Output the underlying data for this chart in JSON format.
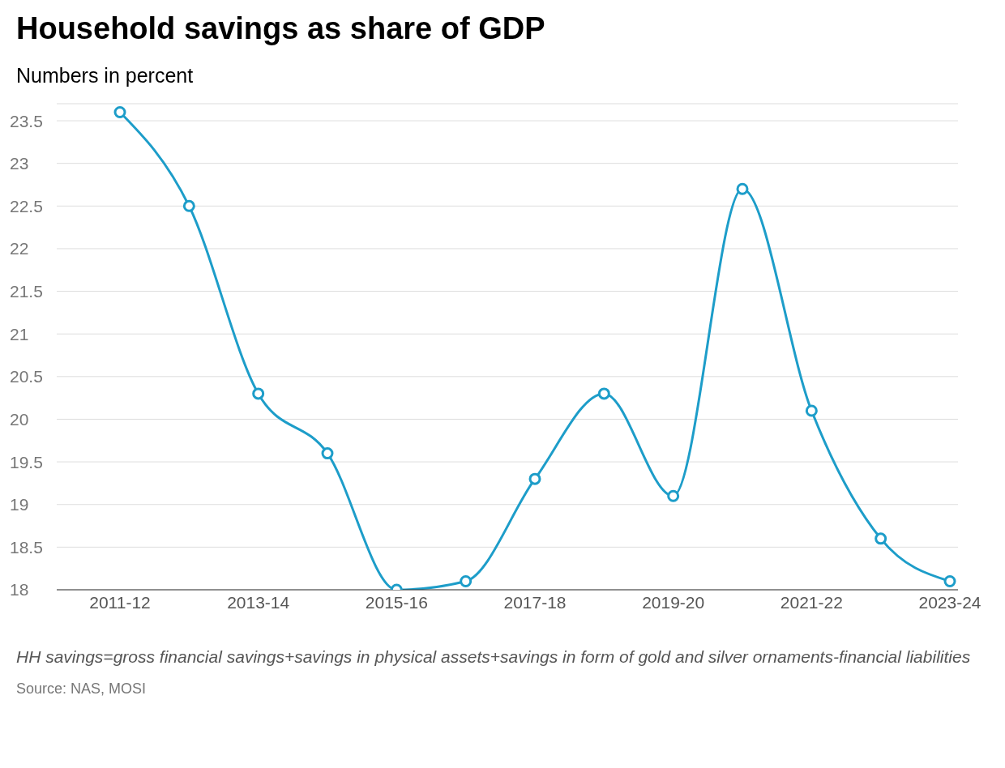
{
  "chart_data": {
    "type": "line",
    "title": "Household savings as share of GDP",
    "subtitle": "Numbers in percent",
    "categories": [
      "2011-12",
      null,
      "2013-14",
      null,
      "2015-16",
      null,
      "2017-18",
      null,
      "2019-20",
      null,
      "2021-22",
      null,
      "2023-24"
    ],
    "series": [
      {
        "color": "#1d9dc9",
        "values": [
          23.6,
          22.5,
          20.3,
          19.6,
          18.0,
          18.1,
          19.3,
          20.3,
          19.1,
          22.7,
          20.1,
          18.6,
          18.1
        ]
      }
    ],
    "ylim": [
      18,
      23.7
    ],
    "yticks": [
      18,
      18.5,
      19,
      19.5,
      20,
      20.5,
      21,
      21.5,
      22,
      22.5,
      23,
      23.5
    ],
    "grid": "y",
    "marker": "circle",
    "annotations": [
      "HH savings=gross financial savings+savings in physical assets+savings in form of gold and silver ornaments-financial liabilities",
      "Source: NAS, MOSI"
    ]
  }
}
